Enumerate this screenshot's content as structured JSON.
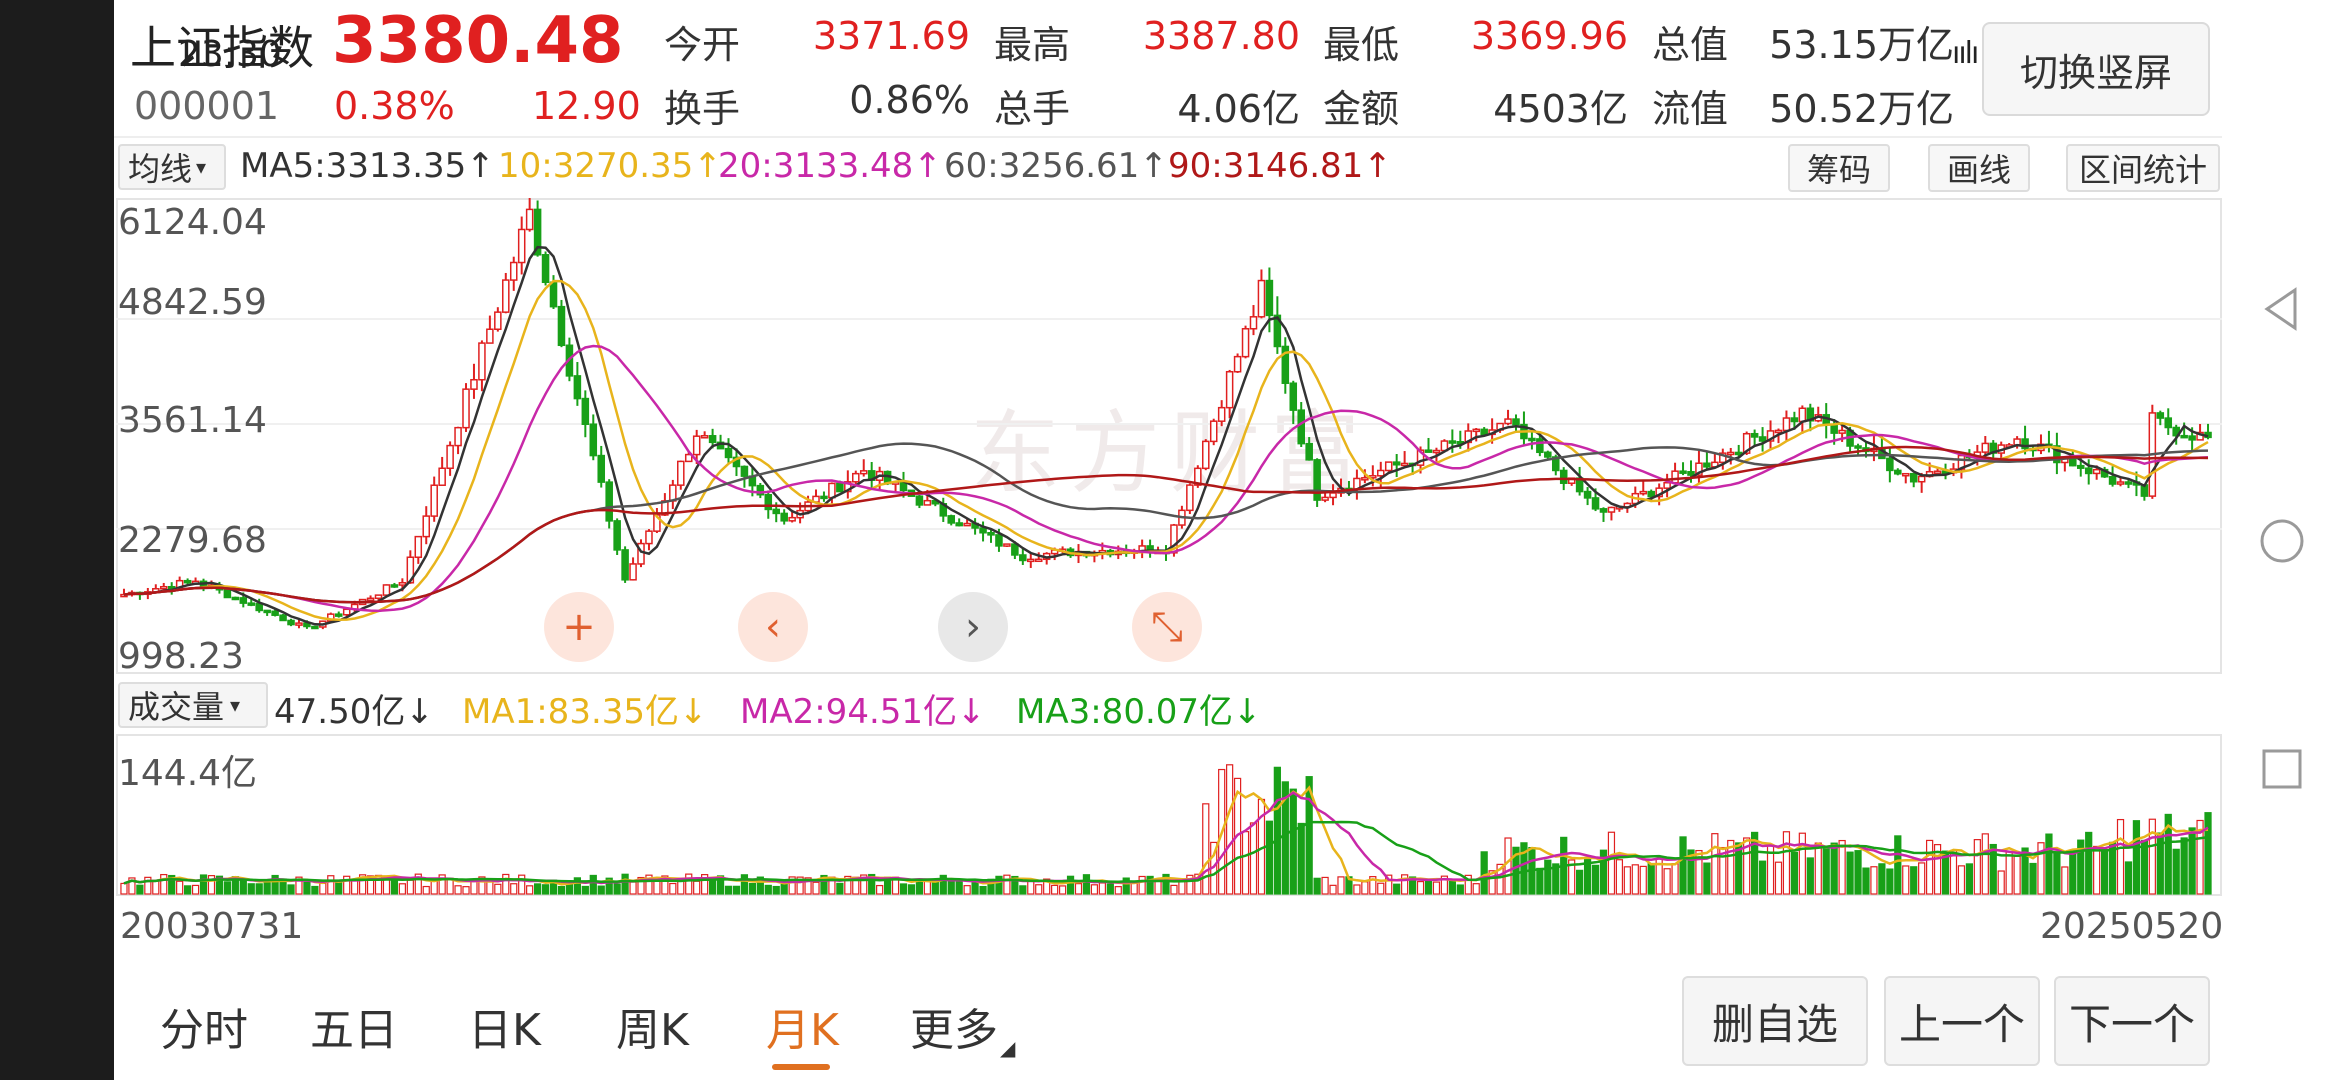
{
  "status": {
    "time": "23:30",
    "icons": "ıılı 4G ıılı"
  },
  "header": {
    "title": "上证指数",
    "price": "3380.48",
    "code": "000001",
    "change_pct": "0.38%",
    "change": "12.90",
    "quotes": [
      {
        "label": "今开",
        "value": "3371.69",
        "color": "red"
      },
      {
        "label": "最高",
        "value": "3387.80",
        "color": "red"
      },
      {
        "label": "最低",
        "value": "3369.96",
        "color": "red"
      },
      {
        "label": "总值",
        "value": "53.15万亿",
        "color": "dark"
      },
      {
        "label": "换手",
        "value": "0.86%",
        "color": "dark"
      },
      {
        "label": "总手",
        "value": "4.06亿",
        "color": "dark"
      },
      {
        "label": "金额",
        "value": "4503亿",
        "color": "dark"
      },
      {
        "label": "流值",
        "value": "50.52万亿",
        "color": "dark"
      }
    ],
    "switch_label": "切换竖屏"
  },
  "ma_bar": {
    "selector": "均线",
    "items": [
      {
        "text": "MA5:3313.35↑",
        "color": "#333333"
      },
      {
        "text": "10:3270.35↑",
        "color": "#e8b41c"
      },
      {
        "text": "20:3133.48↑",
        "color": "#c828a8"
      },
      {
        "text": "60:3256.61↑",
        "color": "#555555"
      },
      {
        "text": "90:3146.81↑",
        "color": "#b01818"
      }
    ],
    "tools": [
      "筹码",
      "画线",
      "区间统计"
    ]
  },
  "price_axis": [
    "6124.04",
    "4842.59",
    "3561.14",
    "2279.68",
    "998.23"
  ],
  "watermark": "东方财富",
  "volume_bar": {
    "selector": "成交量",
    "items": [
      {
        "text": "47.50亿↓",
        "color": "#333333"
      },
      {
        "text": "MA1:83.35亿↓",
        "color": "#e8b41c"
      },
      {
        "text": "MA2:94.51亿↓",
        "color": "#c828a8"
      },
      {
        "text": "MA3:80.07亿↓",
        "color": "#18a018"
      }
    ],
    "axis_max": "144.4亿"
  },
  "date_range": {
    "start": "20030731",
    "end": "20250520"
  },
  "controls": {
    "crosshair": "+",
    "prev": "‹",
    "next": "›",
    "shrink": "⤡"
  },
  "tabs": [
    {
      "label": "分时",
      "active": false
    },
    {
      "label": "五日",
      "active": false
    },
    {
      "label": "日K",
      "active": false
    },
    {
      "label": "周K",
      "active": false
    },
    {
      "label": "月K",
      "active": true
    },
    {
      "label": "更多",
      "active": false
    }
  ],
  "actions": [
    "删自选",
    "上一个",
    "下一个"
  ],
  "colors": {
    "up": "#e02020",
    "down": "#18a018",
    "accent": "#e07020"
  },
  "chart_data": {
    "type": "candlestick",
    "period": "month",
    "y_range": [
      998.23,
      6124.04
    ],
    "x_range": [
      "20030731",
      "20250520"
    ],
    "anchors": [
      {
        "x": "2003-07",
        "close": 1480
      },
      {
        "x": "2004-04",
        "close": 1650
      },
      {
        "x": "2005-06",
        "close": 1060
      },
      {
        "x": "2006-06",
        "close": 1650
      },
      {
        "x": "2007-10",
        "close": 6124
      },
      {
        "x": "2008-10",
        "close": 1660
      },
      {
        "x": "2009-07",
        "close": 3460
      },
      {
        "x": "2010-06",
        "close": 2400
      },
      {
        "x": "2011-04",
        "close": 3000
      },
      {
        "x": "2012-12",
        "close": 1950
      },
      {
        "x": "2013-06",
        "close": 2000
      },
      {
        "x": "2014-06",
        "close": 2050
      },
      {
        "x": "2015-06",
        "close": 5178
      },
      {
        "x": "2016-01",
        "close": 2700
      },
      {
        "x": "2018-01",
        "close": 3560
      },
      {
        "x": "2019-01",
        "close": 2450
      },
      {
        "x": "2021-02",
        "close": 3700
      },
      {
        "x": "2022-04",
        "close": 2900
      },
      {
        "x": "2023-05",
        "close": 3400
      },
      {
        "x": "2024-09",
        "close": 2700
      },
      {
        "x": "2024-10",
        "close": 3600
      },
      {
        "x": "2025-05",
        "close": 3380
      }
    ],
    "volume_max": 144.4,
    "volume_unit": "亿"
  }
}
